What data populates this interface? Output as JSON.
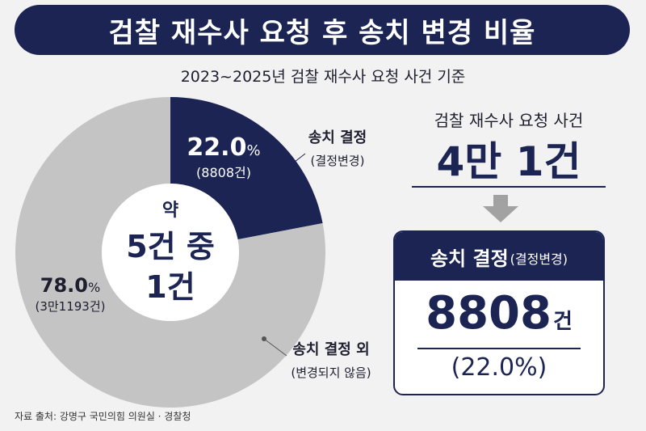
{
  "title": "검찰 재수사 요청 후 송치 변경 비율",
  "subtitle": "2023~2025년 검찰 재수사 요청 사건 기준",
  "chart_data": {
    "type": "pie",
    "donut": true,
    "slices": [
      {
        "label": "송치 결정",
        "sublabel": "(결정변경)",
        "value": 22.0,
        "pct_text": "22.0",
        "count_text": "(8808건)",
        "color": "#1b2453"
      },
      {
        "label": "송치 결정 외",
        "sublabel": "(변경되지 않음)",
        "value": 78.0,
        "pct_text": "78.0",
        "count_text": "(3만1193건)",
        "color": "#c4c4c4"
      }
    ],
    "percent_sign": "%",
    "center_text": [
      "약",
      "5건 중",
      "1건"
    ]
  },
  "summary": {
    "cases_label": "검찰 재수사 요청 사건",
    "cases_value": "4만 1건",
    "result_label": "송치 결정",
    "result_label_sub": "(결정변경)",
    "result_value": "8808",
    "result_unit": "건",
    "result_percent": "(22.0%)"
  },
  "source": "자료 출처: 강명구 국민의힘 의원실 · 경찰청",
  "colors": {
    "navy": "#1b2453",
    "gray": "#c4c4c4",
    "background": "#f2f2f2",
    "arrow": "#a2a2a2"
  }
}
